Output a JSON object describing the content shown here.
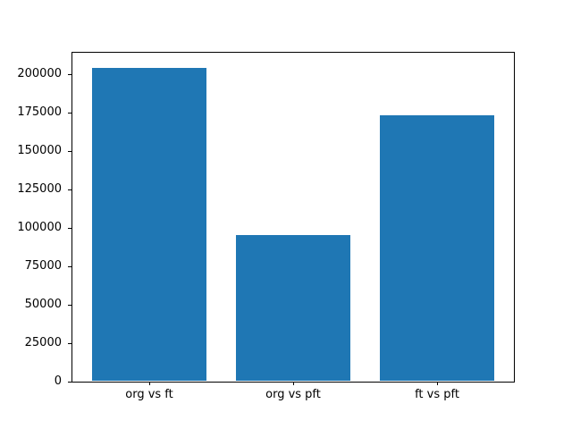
{
  "figure": {
    "background": "#ffffff",
    "spine_color": "#000000"
  },
  "chart_data": {
    "type": "bar",
    "title": "",
    "xlabel": "",
    "ylabel": "",
    "categories": [
      "org vs ft",
      "org vs pft",
      "ft vs pft"
    ],
    "values": [
      204000,
      95000,
      173000
    ],
    "bar_color": "#1f77b4",
    "bar_width_fraction": 0.8,
    "ylim": [
      0,
      214200
    ],
    "yticks": [
      0,
      25000,
      50000,
      75000,
      100000,
      125000,
      150000,
      175000,
      200000
    ],
    "ytick_labels": [
      "0",
      "25000",
      "50000",
      "75000",
      "100000",
      "125000",
      "150000",
      "175000",
      "200000"
    ],
    "tick_label_color": "#000000",
    "grid": false,
    "legend": "none"
  }
}
